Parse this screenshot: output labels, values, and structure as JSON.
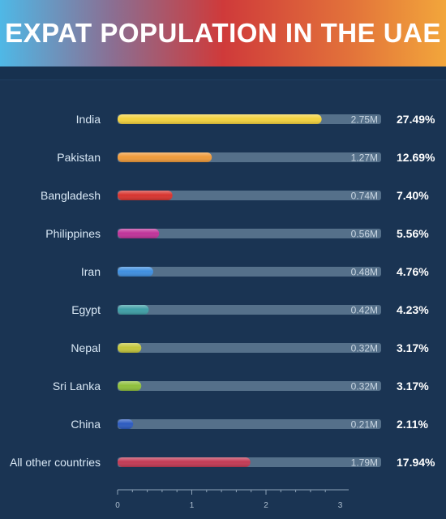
{
  "header": {
    "title": "EXPAT POPULATION IN THE UAE"
  },
  "colors": {
    "background": "#1a3453",
    "track": "#55708a"
  },
  "chart_data": {
    "type": "bar",
    "orientation": "horizontal",
    "title": "EXPAT POPULATION IN THE UAE",
    "xlabel": "",
    "ylabel": "",
    "xlim": [
      0,
      3.1
    ],
    "unit": "M",
    "grid": false,
    "categories": [
      "India",
      "Pakistan",
      "Bangladesh",
      "Philippines",
      "Iran",
      "Egypt",
      "Nepal",
      "Sri Lanka",
      "China",
      "All other countries"
    ],
    "values": [
      2.75,
      1.27,
      0.74,
      0.56,
      0.48,
      0.42,
      0.32,
      0.32,
      0.21,
      1.79
    ],
    "value_labels": [
      "2.75M",
      "1.27M",
      "0.74M",
      "0.56M",
      "0.48M",
      "0.42M",
      "0.32M",
      "0.32M",
      "0.21M",
      "1.79M"
    ],
    "percentages": [
      "27.49%",
      "12.69%",
      "7.40%",
      "5.56%",
      "4.76%",
      "4.23%",
      "3.17%",
      "3.17%",
      "2.11%",
      "17.94%"
    ],
    "bar_colors": [
      "#f3d23e",
      "#ef9a3a",
      "#d7342f",
      "#c0339a",
      "#3f8fe0",
      "#3f9fa6",
      "#c4c63c",
      "#8fc03c",
      "#2c5bc0",
      "#c23a55"
    ],
    "x_ticks": [
      0,
      1,
      2,
      3
    ]
  }
}
